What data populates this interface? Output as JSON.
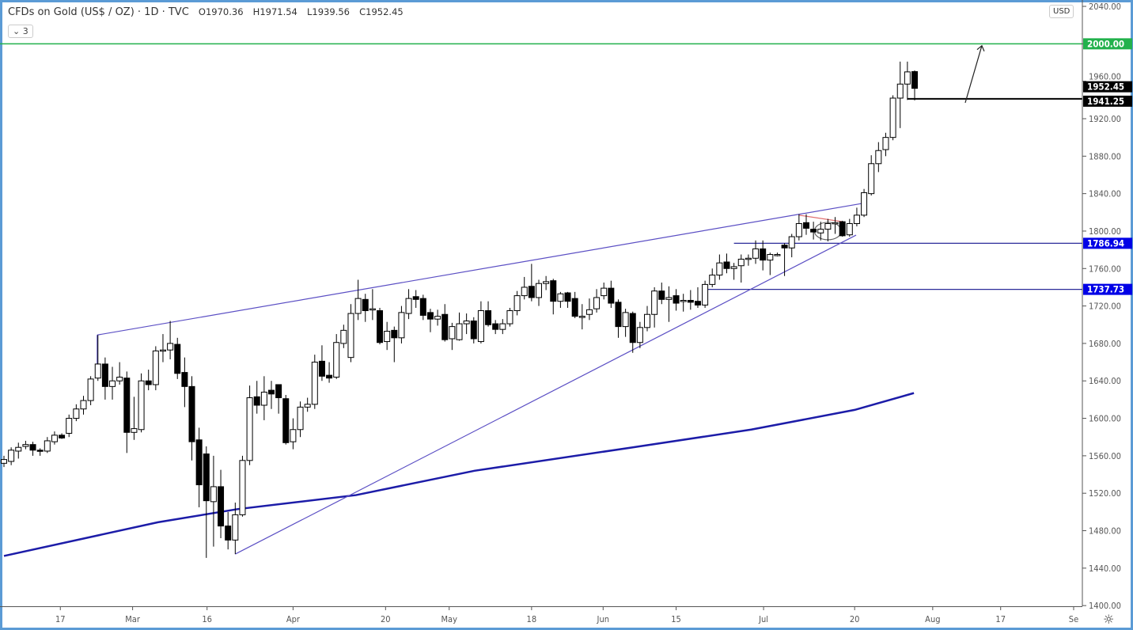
{
  "header": {
    "title": "CFDs on Gold (US$ / OZ) · 1D · TVC",
    "open": "O1970.36",
    "high": "H1971.54",
    "low": "L1939.56",
    "close": "C1952.45",
    "collapse_label": "3",
    "currency": "USD"
  },
  "chart_data": {
    "type": "candlestick",
    "ylim": [
      1400,
      2040
    ],
    "y_ticks": [
      1400,
      1440,
      1480,
      1520,
      1560,
      1600,
      1640,
      1680,
      1720,
      1760,
      1800,
      1840,
      1880,
      1920,
      1960,
      2000,
      2040
    ],
    "x_ticks": [
      {
        "label": "17",
        "bar": 7.8
      },
      {
        "label": "Mar",
        "bar": 17.8
      },
      {
        "label": "16",
        "bar": 28.1
      },
      {
        "label": "Apr",
        "bar": 40
      },
      {
        "label": "20",
        "bar": 52.8
      },
      {
        "label": "May",
        "bar": 61.6
      },
      {
        "label": "18",
        "bar": 73
      },
      {
        "label": "Jun",
        "bar": 82.9
      },
      {
        "label": "15",
        "bar": 93
      },
      {
        "label": "Jul",
        "bar": 105.1
      },
      {
        "label": "20",
        "bar": 117.7
      },
      {
        "label": "Aug",
        "bar": 128.5
      },
      {
        "label": "17",
        "bar": 137.9
      },
      {
        "label": "Se",
        "bar": 148
      }
    ],
    "candles_ohlc": [
      [
        1552,
        1560,
        1548,
        1556
      ],
      [
        1554,
        1569,
        1550,
        1566
      ],
      [
        1565,
        1574,
        1557,
        1569
      ],
      [
        1570,
        1576,
        1567,
        1572
      ],
      [
        1572,
        1575,
        1560,
        1566
      ],
      [
        1566,
        1568,
        1560,
        1565
      ],
      [
        1565,
        1580,
        1563,
        1576
      ],
      [
        1575,
        1586,
        1572,
        1582
      ],
      [
        1582,
        1584,
        1578,
        1579
      ],
      [
        1584,
        1604,
        1580,
        1600
      ],
      [
        1600,
        1615,
        1597,
        1610
      ],
      [
        1610,
        1624,
        1604,
        1619
      ],
      [
        1619,
        1645,
        1614,
        1642
      ],
      [
        1643,
        1689,
        1640,
        1658
      ],
      [
        1658,
        1665,
        1620,
        1634
      ],
      [
        1634,
        1655,
        1620,
        1640
      ],
      [
        1640,
        1660,
        1636,
        1644
      ],
      [
        1643,
        1650,
        1563,
        1585
      ],
      [
        1585,
        1623,
        1577,
        1589
      ],
      [
        1588,
        1648,
        1585,
        1640
      ],
      [
        1640,
        1652,
        1630,
        1636
      ],
      [
        1636,
        1677,
        1630,
        1672
      ],
      [
        1672,
        1690,
        1660,
        1673
      ],
      [
        1673,
        1704,
        1663,
        1680
      ],
      [
        1679,
        1686,
        1642,
        1648
      ],
      [
        1649,
        1665,
        1612,
        1634
      ],
      [
        1634,
        1645,
        1555,
        1575
      ],
      [
        1577,
        1590,
        1505,
        1529
      ],
      [
        1562,
        1570,
        1451,
        1512
      ],
      [
        1511,
        1560,
        1463,
        1527
      ],
      [
        1527,
        1545,
        1472,
        1485
      ],
      [
        1485,
        1500,
        1460,
        1470
      ],
      [
        1470,
        1510,
        1455,
        1497
      ],
      [
        1497,
        1560,
        1495,
        1555
      ],
      [
        1555,
        1635,
        1550,
        1622
      ],
      [
        1623,
        1640,
        1605,
        1614
      ],
      [
        1614,
        1645,
        1598,
        1628
      ],
      [
        1630,
        1640,
        1610,
        1626
      ],
      [
        1636,
        1636,
        1605,
        1622
      ],
      [
        1621,
        1625,
        1572,
        1574
      ],
      [
        1575,
        1600,
        1567,
        1588
      ],
      [
        1588,
        1618,
        1580,
        1612
      ],
      [
        1612,
        1622,
        1607,
        1615
      ],
      [
        1615,
        1668,
        1610,
        1660
      ],
      [
        1661,
        1678,
        1640,
        1645
      ],
      [
        1646,
        1660,
        1638,
        1643
      ],
      [
        1644,
        1690,
        1642,
        1681
      ],
      [
        1680,
        1700,
        1675,
        1694
      ],
      [
        1665,
        1722,
        1660,
        1712
      ],
      [
        1712,
        1748,
        1705,
        1728
      ],
      [
        1727,
        1733,
        1703,
        1715
      ],
      [
        1716,
        1738,
        1705,
        1717
      ],
      [
        1715,
        1718,
        1679,
        1681
      ],
      [
        1682,
        1703,
        1673,
        1693
      ],
      [
        1694,
        1698,
        1660,
        1686
      ],
      [
        1686,
        1720,
        1680,
        1713
      ],
      [
        1712,
        1738,
        1706,
        1728
      ],
      [
        1730,
        1737,
        1718,
        1727
      ],
      [
        1728,
        1732,
        1705,
        1710
      ],
      [
        1713,
        1717,
        1692,
        1706
      ],
      [
        1706,
        1716,
        1699,
        1709
      ],
      [
        1711,
        1722,
        1682,
        1684
      ],
      [
        1685,
        1702,
        1673,
        1698
      ],
      [
        1684,
        1713,
        1683,
        1701
      ],
      [
        1701,
        1712,
        1690,
        1704
      ],
      [
        1704,
        1708,
        1680,
        1685
      ],
      [
        1682,
        1725,
        1680,
        1715
      ],
      [
        1715,
        1725,
        1698,
        1700
      ],
      [
        1701,
        1705,
        1690,
        1695
      ],
      [
        1695,
        1706,
        1690,
        1701
      ],
      [
        1701,
        1718,
        1698,
        1715
      ],
      [
        1715,
        1736,
        1710,
        1731
      ],
      [
        1731,
        1751,
        1727,
        1740
      ],
      [
        1741,
        1765,
        1725,
        1729
      ],
      [
        1729,
        1748,
        1720,
        1744
      ],
      [
        1744,
        1752,
        1737,
        1746
      ],
      [
        1747,
        1749,
        1711,
        1725
      ],
      [
        1725,
        1735,
        1718,
        1733
      ],
      [
        1734,
        1735,
        1718,
        1725
      ],
      [
        1728,
        1735,
        1707,
        1709
      ],
      [
        1709,
        1722,
        1695,
        1709
      ],
      [
        1711,
        1728,
        1705,
        1716
      ],
      [
        1717,
        1738,
        1713,
        1729
      ],
      [
        1731,
        1745,
        1727,
        1739
      ],
      [
        1739,
        1747,
        1718,
        1723
      ],
      [
        1724,
        1727,
        1686,
        1698
      ],
      [
        1698,
        1717,
        1687,
        1713
      ],
      [
        1712,
        1714,
        1670,
        1681
      ],
      [
        1681,
        1703,
        1675,
        1697
      ],
      [
        1697,
        1720,
        1693,
        1711
      ],
      [
        1711,
        1740,
        1697,
        1736
      ],
      [
        1736,
        1745,
        1722,
        1727
      ],
      [
        1727,
        1741,
        1703,
        1729
      ],
      [
        1731,
        1738,
        1715,
        1723
      ],
      [
        1725,
        1733,
        1714,
        1726
      ],
      [
        1726,
        1737,
        1716,
        1724
      ],
      [
        1725,
        1740,
        1718,
        1721
      ],
      [
        1721,
        1747,
        1718,
        1743
      ],
      [
        1743,
        1760,
        1740,
        1753
      ],
      [
        1753,
        1775,
        1748,
        1766
      ],
      [
        1767,
        1776,
        1755,
        1760
      ],
      [
        1760,
        1766,
        1748,
        1762
      ],
      [
        1763,
        1775,
        1745,
        1770
      ],
      [
        1770,
        1775,
        1763,
        1771
      ],
      [
        1771,
        1790,
        1765,
        1781
      ],
      [
        1781,
        1790,
        1758,
        1769
      ],
      [
        1769,
        1777,
        1753,
        1775
      ],
      [
        1775,
        1777,
        1773,
        1775
      ],
      [
        1785,
        1787,
        1752,
        1782
      ],
      [
        1782,
        1797,
        1772,
        1794
      ],
      [
        1794,
        1818,
        1790,
        1808
      ],
      [
        1809,
        1818,
        1796,
        1803
      ],
      [
        1802,
        1810,
        1791,
        1799
      ],
      [
        1798,
        1810,
        1790,
        1802
      ],
      [
        1802,
        1813,
        1789,
        1808
      ],
      [
        1808,
        1815,
        1797,
        1809
      ],
      [
        1810,
        1811,
        1794,
        1795
      ],
      [
        1796,
        1813,
        1794,
        1808
      ],
      [
        1808,
        1825,
        1805,
        1817
      ],
      [
        1817,
        1845,
        1815,
        1841
      ],
      [
        1840,
        1881,
        1838,
        1872
      ],
      [
        1872,
        1895,
        1863,
        1886
      ],
      [
        1887,
        1905,
        1880,
        1900
      ],
      [
        1900,
        1945,
        1897,
        1942
      ],
      [
        1942,
        1981,
        1910,
        1957
      ],
      [
        1957,
        1981,
        1940,
        1970
      ],
      [
        1970.36,
        1971.54,
        1939.56,
        1952.45
      ]
    ],
    "moving_average": [
      {
        "bar": 0,
        "value": 1453
      },
      {
        "bar": 21.3,
        "value": 1489
      },
      {
        "bar": 32.3,
        "value": 1503
      },
      {
        "bar": 48.7,
        "value": 1518
      },
      {
        "bar": 65.1,
        "value": 1544
      },
      {
        "bar": 87,
        "value": 1569
      },
      {
        "bar": 103.4,
        "value": 1588
      },
      {
        "bar": 117.7,
        "value": 1609
      },
      {
        "bar": 125.9,
        "value": 1627
      }
    ],
    "drawings": {
      "resistance_2000": {
        "price": 2000.0,
        "label": "2000.00",
        "color": "#22b14c"
      },
      "support_1941": {
        "price": 1941.25,
        "label": "1941.25",
        "from_bar": 125
      },
      "level_1786": {
        "price": 1786.94,
        "label": "1786.94",
        "from_bar": 101
      },
      "level_1737": {
        "price": 1737.73,
        "label": "1737.73",
        "from_bar": 97
      },
      "upper_trendline": {
        "from": [
          12.9,
          1689
        ],
        "to": [
          118.8,
          1829.6
        ]
      },
      "lower_trendline": {
        "from": [
          32,
          1455
        ],
        "to": [
          117.9,
          1795.7
        ]
      },
      "red_line": {
        "from": [
          110,
          1817
        ],
        "to": [
          116,
          1810
        ]
      },
      "ellipse": {
        "bar": 114,
        "price": 1800
      },
      "arrow": {
        "from": [
          133,
          1937
        ],
        "to": [
          135.3,
          1998
        ]
      }
    },
    "last_price": {
      "price": 1952.45,
      "label": "1952.45"
    },
    "colors": {
      "up": "#ffffff",
      "down": "#000000",
      "trend": "#5b4fc4",
      "level": "#2b2b9a",
      "ma": "#1c1ca8",
      "level_label": "#0000e6"
    }
  }
}
